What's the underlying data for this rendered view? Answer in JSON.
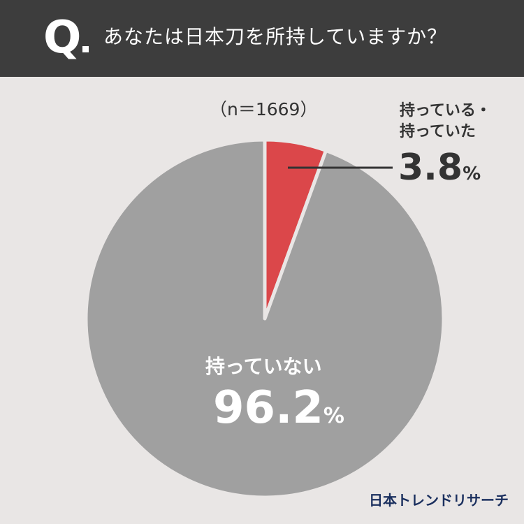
{
  "header": {
    "q_letter": "Q",
    "question": "あなたは日本刀を所持していますか？"
  },
  "sample_size": "（n＝1669）",
  "chart_data": {
    "type": "pie",
    "title": "あなたは日本刀を所持していますか？",
    "slices": [
      {
        "label": "持っている・持っていた",
        "label_lines": [
          "持っている・",
          "持っていた"
        ],
        "value": 3.8,
        "color": "#db474a"
      },
      {
        "label": "持っていない",
        "value": 96.2,
        "color": "#a0a0a0"
      }
    ],
    "unit": "%",
    "start_angle": "12 o'clock",
    "direction": "clockwise"
  },
  "brand": "日本トレンドリサーチ"
}
